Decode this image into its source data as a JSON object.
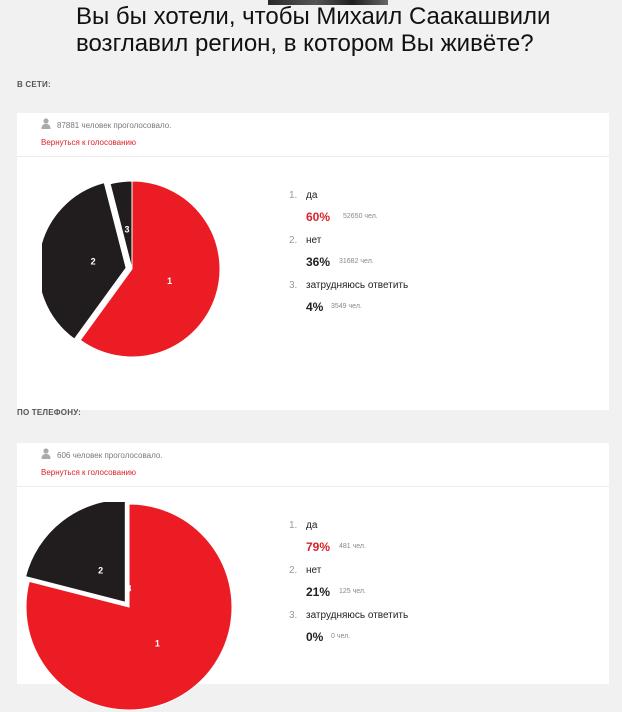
{
  "header": {
    "question_line1": "Вы бы хотели, чтобы Михаил Саакашвили",
    "question_line2": "возглавил регион, в котором Вы живёте?"
  },
  "sections": [
    {
      "label": "В СЕТИ:",
      "voted_text": "87881 человек проголосовало.",
      "back_link": "Вернуться к голосованию",
      "answers": [
        {
          "num": "1.",
          "text": "да",
          "pct": "60%",
          "count": "52650 чел."
        },
        {
          "num": "2.",
          "text": "нет",
          "pct": "36%",
          "count": "31682 чел."
        },
        {
          "num": "3.",
          "text": "затрудняюсь ответить",
          "pct": "4%",
          "count": "3549 чел."
        }
      ]
    },
    {
      "label": "ПО ТЕЛЕФОНУ:",
      "voted_text": "606 человек проголосовало.",
      "back_link": "Вернуться к голосованию",
      "answers": [
        {
          "num": "1.",
          "text": "да",
          "pct": "79%",
          "count": "481 чел."
        },
        {
          "num": "2.",
          "text": "нет",
          "pct": "21%",
          "count": "125 чел."
        },
        {
          "num": "3.",
          "text": "затрудняюсь ответить",
          "pct": "0%",
          "count": "0 чел."
        }
      ]
    }
  ],
  "chart_data": [
    {
      "type": "pie",
      "categories": [
        "1",
        "2",
        "3"
      ],
      "values": [
        60,
        36,
        4
      ],
      "colors": [
        "#ec1c24",
        "#211d1e",
        "#211d1e"
      ]
    },
    {
      "type": "pie",
      "categories": [
        "1",
        "2",
        "3"
      ],
      "values": [
        79,
        21,
        0
      ],
      "colors": [
        "#ec1c24",
        "#211d1e",
        "#211d1e"
      ]
    }
  ]
}
